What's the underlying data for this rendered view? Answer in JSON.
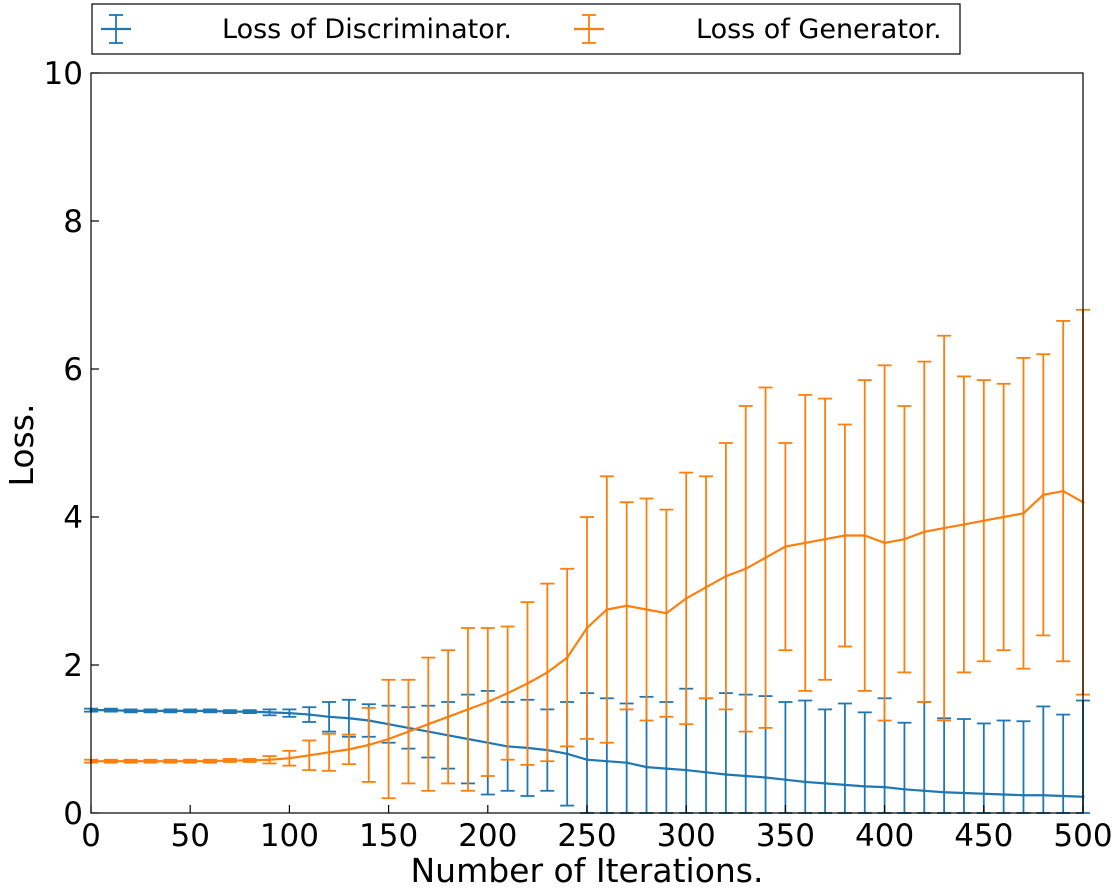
{
  "chart_data": {
    "type": "line",
    "xlabel": "Number of Iterations.",
    "ylabel": "Loss.",
    "xlim": [
      0,
      500
    ],
    "ylim": [
      0,
      10
    ],
    "xticks": [
      0,
      50,
      100,
      150,
      200,
      250,
      300,
      350,
      400,
      450,
      500
    ],
    "yticks": [
      0,
      2,
      4,
      6,
      8,
      10
    ],
    "grid": false,
    "legend_position": "top-center-outside",
    "series": [
      {
        "name": "Loss of Discriminator.",
        "color": "#1f77b4",
        "x": [
          0,
          10,
          20,
          30,
          40,
          50,
          60,
          70,
          80,
          90,
          100,
          110,
          120,
          130,
          140,
          150,
          160,
          170,
          180,
          190,
          200,
          210,
          220,
          230,
          240,
          250,
          260,
          270,
          280,
          290,
          300,
          310,
          320,
          330,
          340,
          350,
          360,
          370,
          380,
          390,
          400,
          410,
          420,
          430,
          440,
          450,
          460,
          470,
          480,
          490,
          500
        ],
        "y": [
          1.39,
          1.39,
          1.38,
          1.38,
          1.38,
          1.38,
          1.38,
          1.37,
          1.37,
          1.36,
          1.35,
          1.33,
          1.3,
          1.28,
          1.25,
          1.2,
          1.15,
          1.1,
          1.05,
          1.0,
          0.95,
          0.9,
          0.88,
          0.85,
          0.8,
          0.72,
          0.7,
          0.68,
          0.62,
          0.6,
          0.58,
          0.55,
          0.52,
          0.5,
          0.48,
          0.45,
          0.42,
          0.4,
          0.38,
          0.36,
          0.35,
          0.32,
          0.3,
          0.28,
          0.27,
          0.26,
          0.25,
          0.24,
          0.24,
          0.23,
          0.22
        ],
        "yerr": [
          0.02,
          0.02,
          0.02,
          0.02,
          0.02,
          0.02,
          0.02,
          0.02,
          0.02,
          0.04,
          0.05,
          0.1,
          0.2,
          0.25,
          0.22,
          0.25,
          0.28,
          0.35,
          0.45,
          0.6,
          0.7,
          0.6,
          0.65,
          0.55,
          0.7,
          0.9,
          0.85,
          0.8,
          0.95,
          0.9,
          1.1,
          1.0,
          1.1,
          1.1,
          1.1,
          1.05,
          1.1,
          1.0,
          1.1,
          1.0,
          1.2,
          0.9,
          1.2,
          1.0,
          1.0,
          0.95,
          1.0,
          1.0,
          1.2,
          1.1,
          1.3
        ]
      },
      {
        "name": "Loss of Generator.",
        "color": "#ff7f0e",
        "x": [
          0,
          10,
          20,
          30,
          40,
          50,
          60,
          70,
          80,
          90,
          100,
          110,
          120,
          130,
          140,
          150,
          160,
          170,
          180,
          190,
          200,
          210,
          220,
          230,
          240,
          250,
          260,
          270,
          280,
          290,
          300,
          310,
          320,
          330,
          340,
          350,
          360,
          370,
          380,
          390,
          400,
          410,
          420,
          430,
          440,
          450,
          460,
          470,
          480,
          490,
          500
        ],
        "y": [
          0.7,
          0.7,
          0.7,
          0.7,
          0.7,
          0.7,
          0.7,
          0.71,
          0.71,
          0.72,
          0.74,
          0.78,
          0.82,
          0.86,
          0.92,
          1.0,
          1.1,
          1.2,
          1.3,
          1.4,
          1.5,
          1.62,
          1.75,
          1.9,
          2.1,
          2.5,
          2.75,
          2.8,
          2.75,
          2.7,
          2.9,
          3.05,
          3.2,
          3.3,
          3.45,
          3.6,
          3.65,
          3.7,
          3.75,
          3.75,
          3.65,
          3.7,
          3.8,
          3.85,
          3.9,
          3.95,
          4.0,
          4.05,
          4.3,
          4.35,
          4.2
        ],
        "yerr": [
          0.02,
          0.02,
          0.02,
          0.02,
          0.02,
          0.02,
          0.02,
          0.02,
          0.02,
          0.05,
          0.1,
          0.2,
          0.25,
          0.2,
          0.5,
          0.8,
          0.7,
          0.9,
          0.9,
          1.1,
          1.0,
          0.9,
          1.1,
          1.2,
          1.2,
          1.5,
          1.8,
          1.4,
          1.5,
          1.4,
          1.7,
          1.5,
          1.8,
          2.2,
          2.3,
          1.4,
          2.0,
          1.9,
          1.5,
          2.1,
          2.4,
          1.8,
          2.3,
          2.6,
          2.0,
          1.9,
          1.8,
          2.1,
          1.9,
          2.3,
          2.6
        ]
      }
    ]
  }
}
